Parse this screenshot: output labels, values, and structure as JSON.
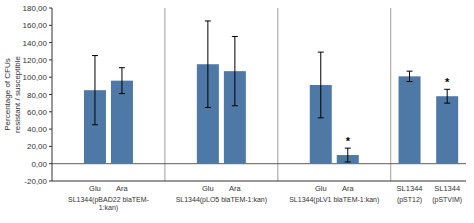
{
  "chart_data": {
    "type": "bar",
    "categories": [
      "Glu",
      "Ara",
      "Glu",
      "Ara",
      "Glu",
      "Ara",
      "SL1344",
      "SL1344"
    ],
    "values": [
      85,
      96,
      115,
      107,
      91,
      10,
      101,
      78
    ],
    "errors": [
      40,
      15,
      50,
      40,
      38,
      8,
      6,
      8
    ],
    "annotations": [
      {
        "text": "*",
        "bar": 5
      },
      {
        "text": "*",
        "bar": 7
      }
    ],
    "groups": [
      {
        "label": "SL1344(pBAD22 blaTEM-\n1:kan)",
        "bars": [
          0,
          1
        ]
      },
      {
        "label": "SL1344(pLO5 blaTEM-1:kan)",
        "bars": [
          2,
          3
        ]
      },
      {
        "label": "SL1344(pLV1 blaTEM-1:kan)",
        "bars": [
          4,
          5
        ]
      },
      {
        "label": "(pST12)",
        "bars": [
          6
        ]
      },
      {
        "label": "(pSTVIM)",
        "bars": [
          7
        ]
      }
    ],
    "y_label": "Percentage of CFUs\nresistant / susceptible",
    "ylim": [
      -20,
      180
    ],
    "yticks": [
      {
        "value": -20,
        "label": "-20,00"
      },
      {
        "value": 0,
        "label": "0,00"
      },
      {
        "value": 20,
        "label": "20,00"
      },
      {
        "value": 40,
        "label": "40,00"
      },
      {
        "value": 60,
        "label": "60,00"
      },
      {
        "value": 80,
        "label": "80,00"
      },
      {
        "value": 100,
        "label": "100,00"
      },
      {
        "value": 120,
        "label": "120,00"
      },
      {
        "value": 140,
        "label": "140,00"
      },
      {
        "value": 160,
        "label": "160,00"
      },
      {
        "value": 180,
        "label": "180,00"
      }
    ],
    "grid": false
  }
}
